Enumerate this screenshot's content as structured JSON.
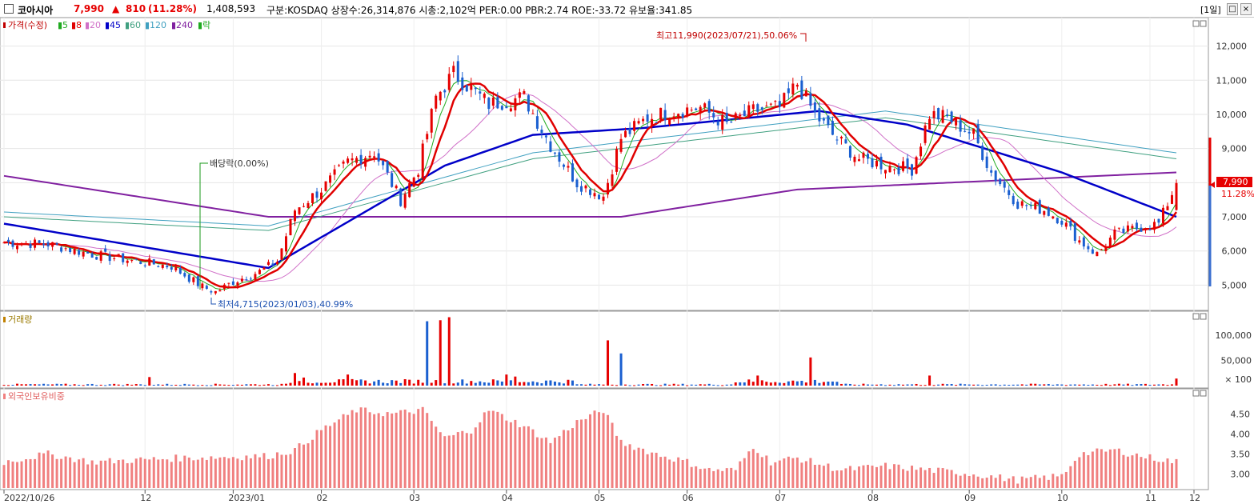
{
  "header": {
    "name": "코아시아",
    "price": "7,990",
    "change_arrow": "▲",
    "change": "810",
    "change_pct": "(11.28%)",
    "volume": "1,408,593",
    "info": "구분:KOSDAQ 상장수:26,314,876 시총:2,102억 PER:0.00 PBR:2.74 ROE:-33.72 유보율:341.85",
    "period_button": "[1일]"
  },
  "colors": {
    "up": "#e60000",
    "down": "#1a5fd0",
    "ma5": "#1faa1f",
    "ma8": "#e00000",
    "ma20": "#d070c8",
    "ma45": "#0000c8",
    "ma60": "#40a080",
    "ma120": "#40a0c0",
    "ma240": "#8020a0",
    "foreign": "#f08080"
  },
  "price_panel": {
    "legend": [
      {
        "label": "가격(수정)",
        "color": "#c00000"
      },
      {
        "label": "5",
        "color": "#1faa1f"
      },
      {
        "label": "8",
        "color": "#e00000"
      },
      {
        "label": "20",
        "color": "#d070c8"
      },
      {
        "label": "45",
        "color": "#0000c8"
      },
      {
        "label": "60",
        "color": "#40a080"
      },
      {
        "label": "120",
        "color": "#40a0c0"
      },
      {
        "label": "240",
        "color": "#8020a0"
      },
      {
        "label": "락",
        "color": "#1faa1f"
      }
    ],
    "annotation_high": "최고11,990(2023/07/21),50.06%",
    "annotation_low": "최저4,715(2023/01/03),40.99%",
    "annotation_dividend": "배당락(0.00%)",
    "last_price_tag": "7,990",
    "last_pct_tag": "11.28%"
  },
  "volume_panel": {
    "legend": "거래량",
    "unit": "× 100"
  },
  "foreign_panel": {
    "legend": "외국인보유비중"
  },
  "chart_data": [
    {
      "type": "candlestick",
      "title": "코아시아",
      "y_ticks": [
        "12,000",
        "11,000",
        "10,000",
        "9,000",
        "8,000",
        "7,000",
        "6,000",
        "5,000"
      ],
      "ylim": [
        4400,
        12600
      ],
      "x_ticks": [
        "2022/10/26",
        "12",
        "2023/01",
        "02",
        "03",
        "04",
        "05",
        "06",
        "07",
        "08",
        "09",
        "10",
        "11",
        "12"
      ],
      "approx_close_path": [
        [
          0,
          6250
        ],
        [
          10,
          6200
        ],
        [
          20,
          5900
        ],
        [
          30,
          5700
        ],
        [
          38,
          5550
        ],
        [
          45,
          4950
        ],
        [
          48,
          4800
        ],
        [
          52,
          5100
        ],
        [
          58,
          5400
        ],
        [
          62,
          5700
        ],
        [
          66,
          7200
        ],
        [
          72,
          7800
        ],
        [
          78,
          8600
        ],
        [
          84,
          8900
        ],
        [
          90,
          7500
        ],
        [
          94,
          8400
        ],
        [
          98,
          10500
        ],
        [
          102,
          11200
        ],
        [
          110,
          10300
        ],
        [
          118,
          10500
        ],
        [
          124,
          9100
        ],
        [
          130,
          8000
        ],
        [
          136,
          7600
        ],
        [
          140,
          9300
        ],
        [
          146,
          9900
        ],
        [
          152,
          10100
        ],
        [
          158,
          10200
        ],
        [
          164,
          9700
        ],
        [
          170,
          10100
        ],
        [
          176,
          10200
        ],
        [
          180,
          10900
        ],
        [
          184,
          10000
        ],
        [
          188,
          9400
        ],
        [
          194,
          8700
        ],
        [
          200,
          8500
        ],
        [
          206,
          8400
        ],
        [
          210,
          10000
        ],
        [
          214,
          9900
        ],
        [
          220,
          9400
        ],
        [
          224,
          8300
        ],
        [
          230,
          7400
        ],
        [
          236,
          7200
        ],
        [
          240,
          6900
        ],
        [
          244,
          6300
        ],
        [
          248,
          5900
        ],
        [
          252,
          6500
        ],
        [
          258,
          6700
        ],
        [
          262,
          6800
        ],
        [
          266,
          7990
        ]
      ],
      "ma240_path": [
        [
          0,
          8200
        ],
        [
          60,
          7000
        ],
        [
          140,
          7000
        ],
        [
          180,
          7800
        ],
        [
          266,
          8300
        ]
      ],
      "ma120_path": [
        [
          0,
          7000
        ],
        [
          60,
          6600
        ],
        [
          120,
          8700
        ],
        [
          200,
          9900
        ],
        [
          266,
          8700
        ]
      ],
      "ma45_path": [
        [
          0,
          6800
        ],
        [
          60,
          5500
        ],
        [
          100,
          8500
        ],
        [
          120,
          9400
        ],
        [
          145,
          9600
        ],
        [
          185,
          10100
        ],
        [
          205,
          9700
        ],
        [
          240,
          8300
        ],
        [
          266,
          7000
        ]
      ]
    },
    {
      "type": "bar",
      "title": "거래량",
      "y_ticks": [
        "100,000",
        "50,000",
        "× 100"
      ],
      "ylim": [
        0,
        140000
      ],
      "spikes": [
        {
          "i": 33,
          "v": 17000,
          "dir": "up"
        },
        {
          "i": 66,
          "v": 25000,
          "dir": "up"
        },
        {
          "i": 68,
          "v": 16000,
          "dir": "up"
        },
        {
          "i": 78,
          "v": 22000,
          "dir": "up"
        },
        {
          "i": 96,
          "v": 128000,
          "dir": "down"
        },
        {
          "i": 99,
          "v": 130000,
          "dir": "up"
        },
        {
          "i": 101,
          "v": 136000,
          "dir": "up"
        },
        {
          "i": 114,
          "v": 22000,
          "dir": "up"
        },
        {
          "i": 116,
          "v": 18000,
          "dir": "up"
        },
        {
          "i": 137,
          "v": 90000,
          "dir": "up"
        },
        {
          "i": 140,
          "v": 64000,
          "dir": "down"
        },
        {
          "i": 171,
          "v": 20000,
          "dir": "up"
        },
        {
          "i": 183,
          "v": 56000,
          "dir": "up"
        },
        {
          "i": 210,
          "v": 20000,
          "dir": "up"
        },
        {
          "i": 266,
          "v": 14000,
          "dir": "up"
        }
      ]
    },
    {
      "type": "bar",
      "title": "외국인보유비중",
      "y_ticks": [
        "4.50",
        "4.00",
        "3.50",
        "3.00"
      ],
      "ylim": [
        2.65,
        4.85
      ],
      "approx_path": [
        [
          0,
          3.3
        ],
        [
          10,
          3.5
        ],
        [
          20,
          3.3
        ],
        [
          40,
          3.4
        ],
        [
          60,
          3.45
        ],
        [
          66,
          3.6
        ],
        [
          72,
          4.1
        ],
        [
          80,
          4.6
        ],
        [
          88,
          4.5
        ],
        [
          95,
          4.6
        ],
        [
          100,
          3.9
        ],
        [
          106,
          4.1
        ],
        [
          110,
          4.6
        ],
        [
          118,
          4.2
        ],
        [
          124,
          3.8
        ],
        [
          130,
          4.3
        ],
        [
          136,
          4.6
        ],
        [
          140,
          3.8
        ],
        [
          148,
          3.5
        ],
        [
          155,
          3.3
        ],
        [
          160,
          3.1
        ],
        [
          166,
          3.1
        ],
        [
          170,
          3.7
        ],
        [
          174,
          3.3
        ],
        [
          180,
          3.4
        ],
        [
          190,
          3.1
        ],
        [
          200,
          3.2
        ],
        [
          210,
          3.1
        ],
        [
          220,
          3.0
        ],
        [
          230,
          2.85
        ],
        [
          240,
          2.95
        ],
        [
          244,
          3.5
        ],
        [
          252,
          3.6
        ],
        [
          258,
          3.45
        ],
        [
          266,
          3.3
        ]
      ]
    }
  ]
}
